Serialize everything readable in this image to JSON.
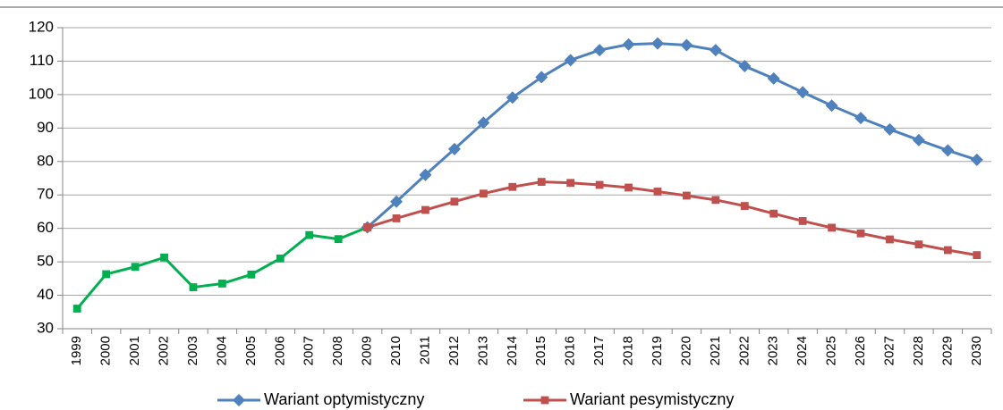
{
  "chart_data": {
    "type": "line",
    "categories": [
      "1999",
      "2000",
      "2001",
      "2002",
      "2003",
      "2004",
      "2005",
      "2006",
      "2007",
      "2008",
      "2009",
      "2010",
      "2011",
      "2012",
      "2013",
      "2014",
      "2015",
      "2016",
      "2017",
      "2018",
      "2019",
      "2020",
      "2021",
      "2022",
      "2023",
      "2024",
      "2025",
      "2026",
      "2027",
      "2028",
      "2029",
      "2030"
    ],
    "series": [
      {
        "color": "#00b050",
        "marker": "square",
        "values": [
          36,
          46.3,
          48.5,
          51.3,
          42.4,
          43.5,
          46.2,
          51,
          58,
          56.8,
          60.3,
          null,
          null,
          null,
          null,
          null,
          null,
          null,
          null,
          null,
          null,
          null,
          null,
          null,
          null,
          null,
          null,
          null,
          null,
          null,
          null,
          null
        ]
      },
      {
        "name": "Wariant optymistyczny",
        "color": "#4f81bd",
        "marker": "diamond",
        "values": [
          null,
          null,
          null,
          null,
          null,
          null,
          null,
          null,
          null,
          null,
          60.3,
          68,
          76,
          83.7,
          91.6,
          99.1,
          105.2,
          110.3,
          113.3,
          115,
          115.3,
          114.8,
          113.3,
          108.5,
          104.8,
          100.7,
          96.7,
          93,
          89.6,
          86.4,
          83.3,
          80.5
        ]
      },
      {
        "name": "Wariant pesymistyczny",
        "color": "#c0504d",
        "marker": "square",
        "values": [
          null,
          null,
          null,
          null,
          null,
          null,
          null,
          null,
          null,
          null,
          60.3,
          63,
          65.5,
          68,
          70.4,
          72.4,
          73.9,
          73.6,
          73,
          72.2,
          71,
          69.8,
          68.5,
          66.7,
          64.4,
          62.2,
          60.2,
          58.5,
          56.7,
          55.2,
          53.5,
          52
        ]
      }
    ],
    "ylim": [
      30,
      120
    ],
    "yticks": [
      30,
      40,
      50,
      60,
      70,
      80,
      90,
      100,
      110,
      120
    ],
    "grid": true,
    "legend": "bottom"
  }
}
